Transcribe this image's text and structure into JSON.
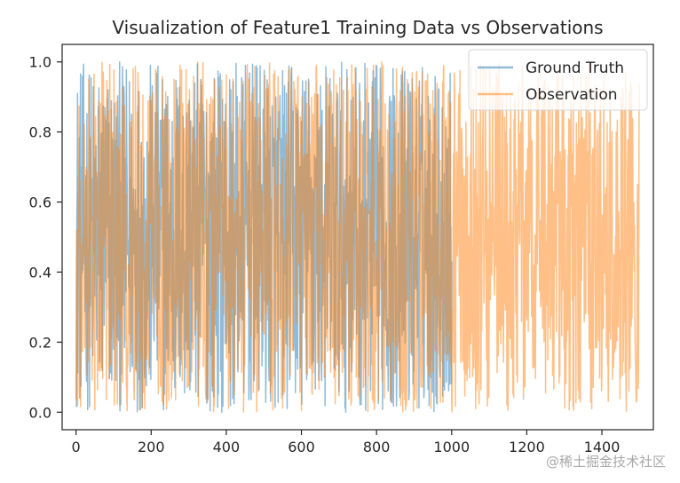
{
  "chart_data": {
    "type": "line",
    "title": "Visualization of Feature1 Training Data vs Observations",
    "xlabel": "",
    "ylabel": "",
    "xlim": [
      -37,
      1537
    ],
    "ylim": [
      -0.05,
      1.05
    ],
    "x_ticks": [
      0,
      200,
      400,
      600,
      800,
      1000,
      1200,
      1400
    ],
    "x_tick_labels": [
      "0",
      "200",
      "400",
      "600",
      "800",
      "1000",
      "1200",
      "1400"
    ],
    "y_ticks": [
      0.0,
      0.2,
      0.4,
      0.6,
      0.8,
      1.0
    ],
    "y_tick_labels": [
      "0.0",
      "0.2",
      "0.4",
      "0.6",
      "0.8",
      "1.0"
    ],
    "grid": false,
    "legend_position": "top-right",
    "series": [
      {
        "name": "Ground Truth",
        "color": "#1f77b4",
        "opacity": 0.5,
        "x_start": 0,
        "x_end": 1000,
        "n_points": 1001,
        "value_range": [
          0.0,
          1.0
        ],
        "pattern": "noisy uniform random values between 0 and 1"
      },
      {
        "name": "Observation",
        "color": "#ff7f0e",
        "opacity": 0.5,
        "x_start": 0,
        "x_end": 1500,
        "n_points": 1501,
        "value_range": [
          0.0,
          1.0
        ],
        "pattern": "noisy uniform random values between 0 and 1"
      }
    ]
  },
  "watermark": "@稀土掘金技术社区"
}
